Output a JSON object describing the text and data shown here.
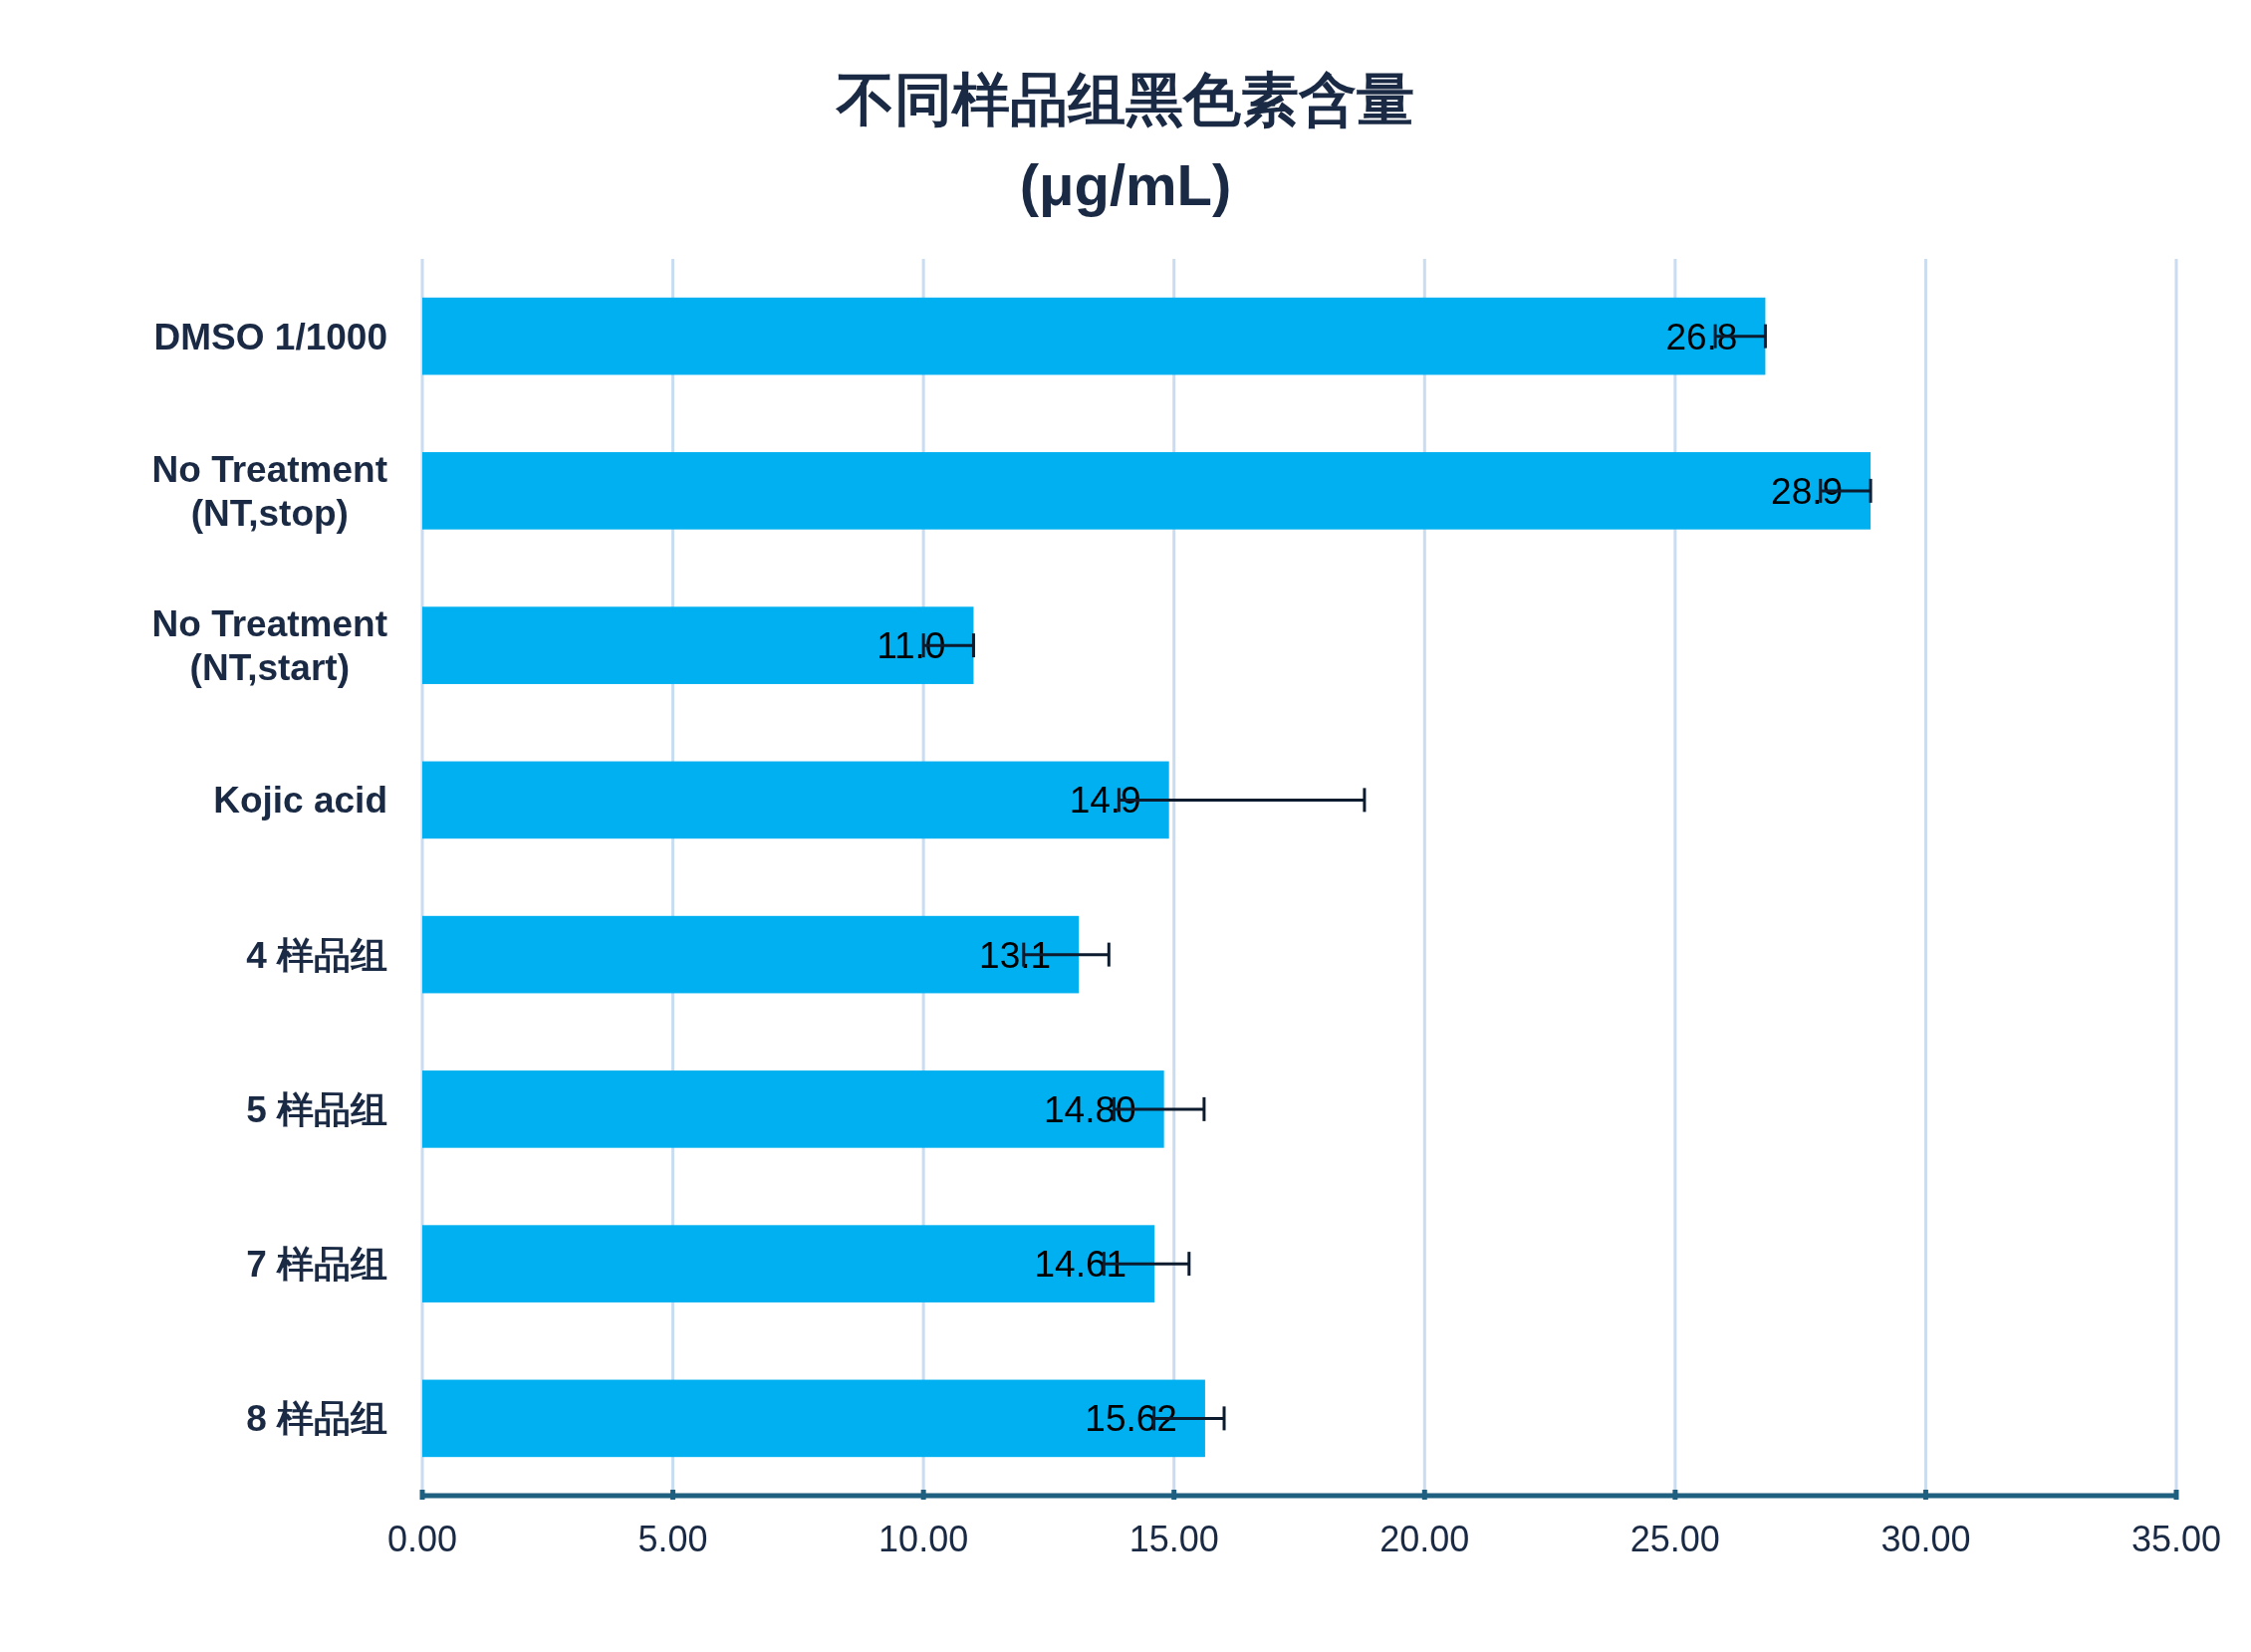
{
  "chart_data": {
    "type": "bar",
    "orientation": "horizontal",
    "title": "不同样品组黑色素含量\n(μg/mL)",
    "categories": [
      "DMSO 1/1000",
      "No Treatment\n(NT,stop)",
      "No Treatment\n(NT,start)",
      "Kojic acid",
      "4 样品组",
      "5 样品组",
      "7 样品组",
      "8 样品组"
    ],
    "values": [
      26.8,
      28.9,
      11.0,
      14.9,
      13.1,
      14.8,
      14.61,
      15.62
    ],
    "value_labels": [
      "26.8",
      "28.9",
      "11.0",
      "14.9",
      "13.1",
      "14.80",
      "14.61",
      "15.62"
    ],
    "errors": [
      [
        25.8,
        26.8
      ],
      [
        27.9,
        28.9
      ],
      [
        10.0,
        11.0
      ],
      [
        13.9,
        18.8
      ],
      [
        12.0,
        13.7
      ],
      [
        13.8,
        15.6
      ],
      [
        13.6,
        15.3
      ],
      [
        14.6,
        16.0
      ]
    ],
    "color": "#00b0f0",
    "xlim": [
      0,
      35
    ],
    "xticks": [
      {
        "value": 0,
        "label": "0.00"
      },
      {
        "value": 5,
        "label": "5.00"
      },
      {
        "value": 10,
        "label": "10.00"
      },
      {
        "value": 15,
        "label": "15.00"
      },
      {
        "value": 20,
        "label": "20.00"
      },
      {
        "value": 25,
        "label": "25.00"
      },
      {
        "value": 30,
        "label": "30.00"
      },
      {
        "value": 35,
        "label": "35.00"
      }
    ],
    "grid": "x"
  }
}
